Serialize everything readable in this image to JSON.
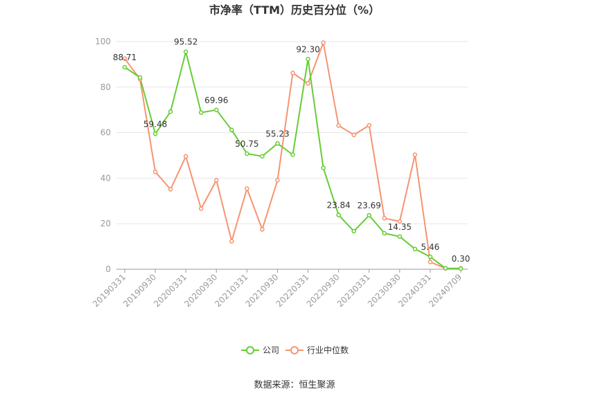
{
  "chart_data": {
    "type": "line",
    "title": "市净率（TTM）历史百分位（%）",
    "xlabel": "",
    "ylabel": "",
    "ylim": [
      0,
      100
    ],
    "yticks": [
      0,
      20,
      40,
      60,
      80,
      100
    ],
    "x": [
      "20190331",
      "20190630",
      "20190930",
      "20191231",
      "20200331",
      "20200630",
      "20200930",
      "20201231",
      "20210331",
      "20210630",
      "20210930",
      "20211231",
      "20220331",
      "20220630",
      "20220930",
      "20221231",
      "20230331",
      "20230630",
      "20230930",
      "20231231",
      "20240331",
      "20240630",
      "20240709"
    ],
    "x_tick_labels": [
      "20190331",
      "20190930",
      "20200331",
      "20200930",
      "20210331",
      "20210930",
      "20220331",
      "20220930",
      "20230331",
      "20230930",
      "20240331",
      "20240709"
    ],
    "grid": true,
    "legend_position": "bottom-center",
    "series": [
      {
        "name": "公司",
        "color": "#66CC33",
        "values": [
          88.71,
          84.2,
          59.48,
          69.2,
          95.52,
          68.8,
          69.96,
          61.2,
          50.75,
          49.6,
          55.23,
          50.3,
          92.3,
          44.5,
          23.84,
          16.7,
          23.69,
          15.8,
          14.35,
          8.9,
          5.46,
          0.4,
          0.3
        ],
        "labels": [
          "88.71",
          null,
          "59.48",
          null,
          "95.52",
          null,
          "69.96",
          null,
          "50.75",
          null,
          "55.23",
          null,
          "92.30",
          null,
          "23.84",
          null,
          "23.69",
          null,
          "14.35",
          null,
          "5.46",
          null,
          "0.30"
        ]
      },
      {
        "name": "行业中位数",
        "color": "#F59470",
        "values": [
          92.5,
          83.5,
          42.8,
          35.1,
          49.6,
          26.6,
          39.1,
          12.3,
          35.4,
          17.5,
          39.1,
          86.2,
          81.6,
          99.5,
          63.1,
          59.0,
          63.2,
          22.4,
          21.0,
          50.3,
          3.2,
          0.4,
          0.4
        ]
      }
    ]
  },
  "legend": {
    "company": "公司",
    "industry": "行业中位数"
  },
  "source": "数据来源：恒生聚源"
}
